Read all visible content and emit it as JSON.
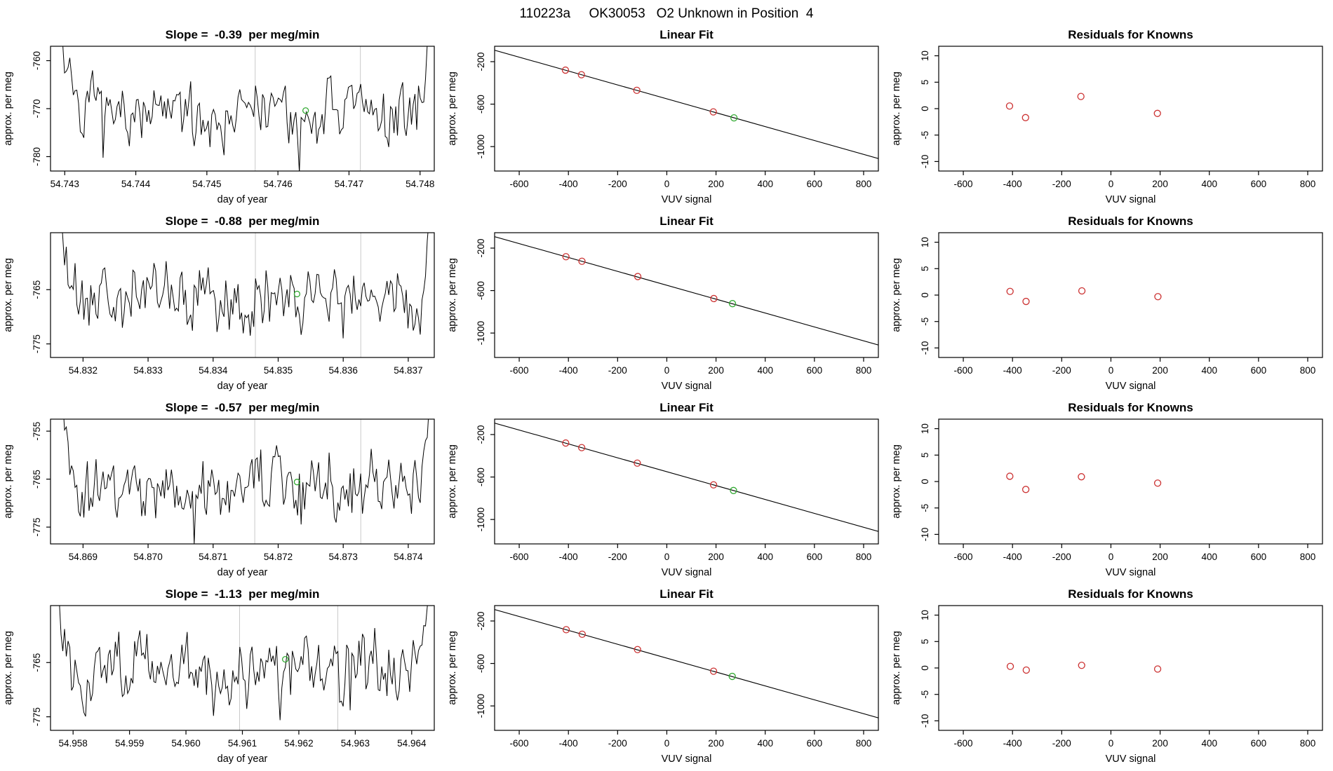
{
  "figure_title": "110223a     OK30053   O2 Unknown in Position  4",
  "colors": {
    "foreground": "#000000",
    "known_point": "#cc3333",
    "unknown_point": "#33aa33",
    "guide_line": "#c9c9c9",
    "background": "#ffffff"
  },
  "chart_data": [
    {
      "panel": "timeseries",
      "row": 1,
      "type": "line",
      "title": "Slope =  -0.39  per meg/min",
      "xlabel": "day of year",
      "ylabel": "approx. per meg",
      "xlim": [
        54.7428,
        54.7482
      ],
      "ylim": [
        -783,
        -757
      ],
      "xticks": {
        "values": [
          54.743,
          54.744,
          54.745,
          54.746,
          54.747,
          54.748
        ],
        "labels": [
          "54.743",
          "54.744",
          "54.745",
          "54.746",
          "54.747",
          "54.748"
        ]
      },
      "yticks": {
        "values": [
          -780,
          -770,
          -760
        ],
        "labels": [
          "-780",
          "-770",
          "-760"
        ]
      },
      "series": {
        "baseline": -771,
        "seed": 7,
        "n": 220,
        "edge_amp": 30,
        "edge_left": 0.08,
        "edge_right": 0.05
      },
      "guide_lines_x": [
        54.74568,
        54.74716
      ],
      "highlight_point": {
        "x": 54.74639,
        "y": -770.4
      }
    },
    {
      "panel": "linear_fit",
      "row": 1,
      "type": "scatter",
      "title": "Linear Fit",
      "xlabel": "VUV signal",
      "ylabel": "approx. per meg",
      "xlim": [
        -700,
        860
      ],
      "ylim": [
        -1230,
        -55
      ],
      "xticks": {
        "values": [
          -600,
          -400,
          -200,
          0,
          200,
          400,
          600,
          800
        ],
        "labels": [
          "-600",
          "-400",
          "-200",
          "0",
          "200",
          "400",
          "600",
          "800"
        ]
      },
      "yticks": {
        "values": [
          -1000,
          -600,
          -200
        ],
        "labels": [
          "-1000",
          "-600",
          "-200"
        ]
      },
      "fit_line": {
        "slope": -0.654,
        "intercept": -550
      },
      "known_points": [
        [
          -412,
          -280
        ],
        [
          -347,
          -323
        ],
        [
          -122,
          -470
        ],
        [
          189,
          -673
        ]
      ],
      "unknown_point": [
        273,
        -729
      ]
    },
    {
      "panel": "residuals",
      "row": 1,
      "type": "scatter",
      "title": "Residuals for Knowns",
      "xlabel": "VUV signal",
      "ylabel": "approx. per meg",
      "xlim": [
        -700,
        860
      ],
      "ylim": [
        -11.8,
        11.8
      ],
      "xticks": {
        "values": [
          -600,
          -400,
          -200,
          0,
          200,
          400,
          600,
          800
        ],
        "labels": [
          "-600",
          "-400",
          "-200",
          "0",
          "200",
          "400",
          "600",
          "800"
        ]
      },
      "yticks": {
        "values": [
          -10,
          -5,
          0,
          5,
          10
        ],
        "labels": [
          "-10",
          "-5",
          "0",
          "5",
          "10"
        ]
      },
      "known_points": [
        [
          -412,
          0.5
        ],
        [
          -347,
          -1.7
        ],
        [
          -122,
          2.3
        ],
        [
          189,
          -0.9
        ]
      ]
    },
    {
      "panel": "timeseries",
      "row": 2,
      "type": "line",
      "title": "Slope =  -0.88  per meg/min",
      "xlabel": "day of year",
      "ylabel": "approx. per meg",
      "xlim": [
        54.8315,
        54.8374
      ],
      "ylim": [
        -777.5,
        -754.5
      ],
      "xticks": {
        "values": [
          54.832,
          54.833,
          54.834,
          54.835,
          54.836,
          54.837
        ],
        "labels": [
          "54.832",
          "54.833",
          "54.834",
          "54.835",
          "54.836",
          "54.837"
        ]
      },
      "yticks": {
        "values": [
          -775,
          -765
        ],
        "labels": [
          "-775",
          "-765"
        ]
      },
      "series": {
        "baseline": -766.5,
        "seed": 21,
        "n": 220,
        "edge_amp": 28,
        "edge_left": 0.07,
        "edge_right": 0.04
      },
      "guide_lines_x": [
        54.83465,
        54.83627
      ],
      "highlight_point": {
        "x": 54.83529,
        "y": -765.8
      }
    },
    {
      "panel": "linear_fit",
      "row": 2,
      "type": "scatter",
      "title": "Linear Fit",
      "xlabel": "VUV signal",
      "ylabel": "approx. per meg",
      "xlim": [
        -700,
        860
      ],
      "ylim": [
        -1230,
        -55
      ],
      "xticks": {
        "values": [
          -600,
          -400,
          -200,
          0,
          200,
          400,
          600,
          800
        ],
        "labels": [
          "-600",
          "-400",
          "-200",
          "0",
          "200",
          "400",
          "600",
          "800"
        ]
      },
      "yticks": {
        "values": [
          -1000,
          -600,
          -200
        ],
        "labels": [
          "-1000",
          "-600",
          "-200"
        ]
      },
      "fit_line": {
        "slope": -0.654,
        "intercept": -550
      },
      "known_points": [
        [
          -410,
          -281
        ],
        [
          -345,
          -324
        ],
        [
          -118,
          -468
        ],
        [
          191,
          -675
        ]
      ],
      "unknown_point": [
        267,
        -723
      ]
    },
    {
      "panel": "residuals",
      "row": 2,
      "type": "scatter",
      "title": "Residuals for Knowns",
      "xlabel": "VUV signal",
      "ylabel": "approx. per meg",
      "xlim": [
        -700,
        860
      ],
      "ylim": [
        -11.8,
        11.8
      ],
      "xticks": {
        "values": [
          -600,
          -400,
          -200,
          0,
          200,
          400,
          600,
          800
        ],
        "labels": [
          "-600",
          "-400",
          "-200",
          "0",
          "200",
          "400",
          "600",
          "800"
        ]
      },
      "yticks": {
        "values": [
          -10,
          -5,
          0,
          5,
          10
        ],
        "labels": [
          "-10",
          "-5",
          "0",
          "5",
          "10"
        ]
      },
      "known_points": [
        [
          -410,
          0.7
        ],
        [
          -345,
          -1.2
        ],
        [
          -118,
          0.8
        ],
        [
          191,
          -0.3
        ]
      ]
    },
    {
      "panel": "timeseries",
      "row": 3,
      "type": "line",
      "title": "Slope =  -0.57  per meg/min",
      "xlabel": "day of year",
      "ylabel": "approx. per meg",
      "xlim": [
        54.8685,
        54.8744
      ],
      "ylim": [
        -778.5,
        -752.5
      ],
      "xticks": {
        "values": [
          54.869,
          54.87,
          54.871,
          54.872,
          54.873,
          54.874
        ],
        "labels": [
          "54.869",
          "54.870",
          "54.871",
          "54.872",
          "54.873",
          "54.874"
        ]
      },
      "yticks": {
        "values": [
          -775,
          -765,
          -755
        ],
        "labels": [
          "-775",
          "-765",
          "-755"
        ]
      },
      "series": {
        "baseline": -766.5,
        "seed": 35,
        "n": 220,
        "edge_amp": 30,
        "edge_left": 0.08,
        "edge_right": 0.04
      },
      "guide_lines_x": [
        54.87164,
        54.87327
      ],
      "highlight_point": {
        "x": 54.87229,
        "y": -765.6
      }
    },
    {
      "panel": "linear_fit",
      "row": 3,
      "type": "scatter",
      "title": "Linear Fit",
      "xlabel": "VUV signal",
      "ylabel": "approx. per meg",
      "xlim": [
        -700,
        860
      ],
      "ylim": [
        -1230,
        -55
      ],
      "xticks": {
        "values": [
          -600,
          -400,
          -200,
          0,
          200,
          400,
          600,
          800
        ],
        "labels": [
          "-600",
          "-400",
          "-200",
          "0",
          "200",
          "400",
          "600",
          "800"
        ]
      },
      "yticks": {
        "values": [
          -1000,
          -600,
          -200
        ],
        "labels": [
          "-1000",
          "-600",
          "-200"
        ]
      },
      "fit_line": {
        "slope": -0.654,
        "intercept": -550
      },
      "known_points": [
        [
          -411,
          -280
        ],
        [
          -346,
          -323
        ],
        [
          -120,
          -469
        ],
        [
          190,
          -674
        ]
      ],
      "unknown_point": [
        271,
        -727
      ]
    },
    {
      "panel": "residuals",
      "row": 3,
      "type": "scatter",
      "title": "Residuals for Knowns",
      "xlabel": "VUV signal",
      "ylabel": "approx. per meg",
      "xlim": [
        -700,
        860
      ],
      "ylim": [
        -11.8,
        11.8
      ],
      "xticks": {
        "values": [
          -600,
          -400,
          -200,
          0,
          200,
          400,
          600,
          800
        ],
        "labels": [
          "-600",
          "-400",
          "-200",
          "0",
          "200",
          "400",
          "600",
          "800"
        ]
      },
      "yticks": {
        "values": [
          -10,
          -5,
          0,
          5,
          10
        ],
        "labels": [
          "-10",
          "-5",
          "0",
          "5",
          "10"
        ]
      },
      "known_points": [
        [
          -411,
          1.0
        ],
        [
          -346,
          -1.5
        ],
        [
          -120,
          0.9
        ],
        [
          190,
          -0.3
        ]
      ]
    },
    {
      "panel": "timeseries",
      "row": 4,
      "type": "line",
      "title": "Slope =  -1.13  per meg/min",
      "xlabel": "day of year",
      "ylabel": "approx. per meg",
      "xlim": [
        54.9576,
        54.9644
      ],
      "ylim": [
        -777.5,
        -754.5
      ],
      "xticks": {
        "values": [
          54.958,
          54.959,
          54.96,
          54.961,
          54.962,
          54.963,
          54.964
        ],
        "labels": [
          "54.958",
          "54.959",
          "54.960",
          "54.961",
          "54.962",
          "54.963",
          "54.964"
        ]
      },
      "yticks": {
        "values": [
          -775,
          -765
        ],
        "labels": [
          "-775",
          "-765"
        ]
      },
      "series": {
        "baseline": -766.8,
        "seed": 48,
        "n": 220,
        "edge_amp": 28,
        "edge_left": 0.07,
        "edge_right": 0.05
      },
      "guide_lines_x": [
        54.96095,
        54.96269
      ],
      "highlight_point": {
        "x": 54.96176,
        "y": -764.4
      }
    },
    {
      "panel": "linear_fit",
      "row": 4,
      "type": "scatter",
      "title": "Linear Fit",
      "xlabel": "VUV signal",
      "ylabel": "approx. per meg",
      "xlim": [
        -700,
        860
      ],
      "ylim": [
        -1230,
        -55
      ],
      "xticks": {
        "values": [
          -600,
          -400,
          -200,
          0,
          200,
          400,
          600,
          800
        ],
        "labels": [
          "-600",
          "-400",
          "-200",
          "0",
          "200",
          "400",
          "600",
          "800"
        ]
      },
      "yticks": {
        "values": [
          -1000,
          -600,
          -200
        ],
        "labels": [
          "-1000",
          "-600",
          "-200"
        ]
      },
      "fit_line": {
        "slope": -0.654,
        "intercept": -550
      },
      "known_points": [
        [
          -409,
          -282
        ],
        [
          -344,
          -325
        ],
        [
          -119,
          -469
        ],
        [
          190,
          -673
        ]
      ],
      "unknown_point": [
        266,
        -722
      ]
    },
    {
      "panel": "residuals",
      "row": 4,
      "type": "scatter",
      "title": "Residuals for Knowns",
      "xlabel": "VUV signal",
      "ylabel": "approx. per meg",
      "xlim": [
        -700,
        860
      ],
      "ylim": [
        -11.8,
        11.8
      ],
      "xticks": {
        "values": [
          -600,
          -400,
          -200,
          0,
          200,
          400,
          600,
          800
        ],
        "labels": [
          "-600",
          "-400",
          "-200",
          "0",
          "200",
          "400",
          "600",
          "800"
        ]
      },
      "yticks": {
        "values": [
          -10,
          -5,
          0,
          5,
          10
        ],
        "labels": [
          "-10",
          "-5",
          "0",
          "5",
          "10"
        ]
      },
      "known_points": [
        [
          -409,
          0.3
        ],
        [
          -344,
          -0.4
        ],
        [
          -119,
          0.5
        ],
        [
          190,
          -0.2
        ]
      ]
    }
  ]
}
